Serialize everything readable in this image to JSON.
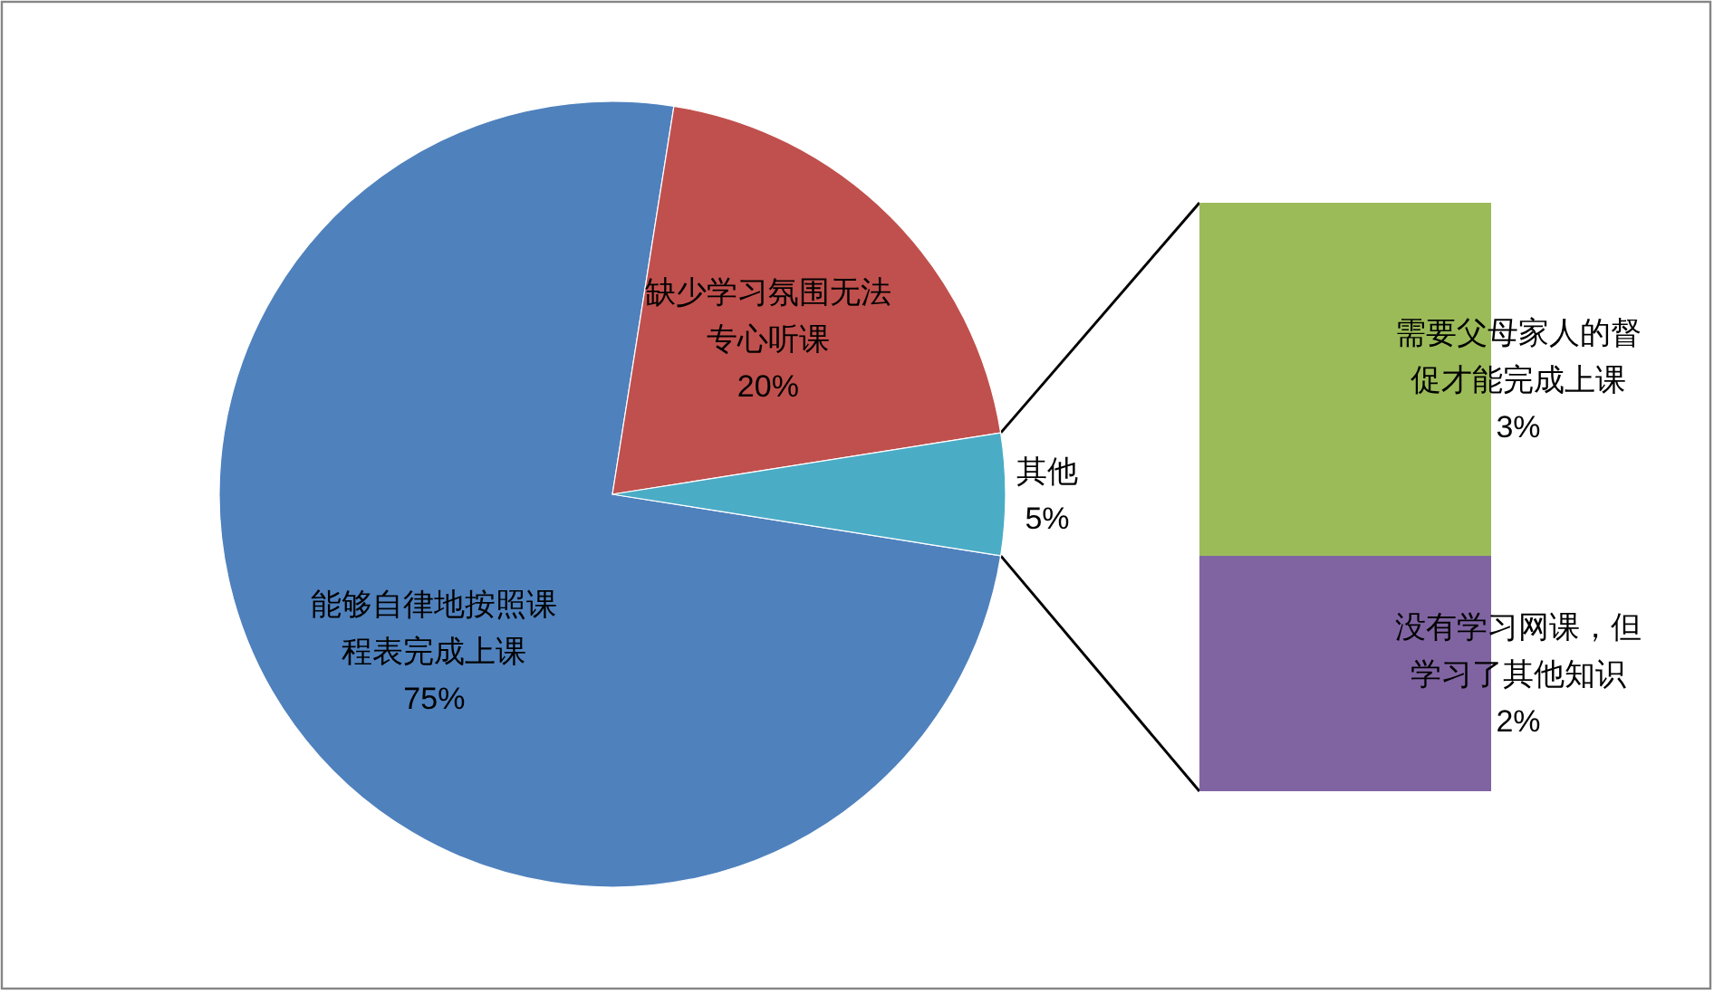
{
  "chart_data": [
    {
      "type": "pie",
      "categories": [
        "能够自律地按照课程表完成上课",
        "缺少学习氛围无法专心听课",
        "其他"
      ],
      "values": [
        75,
        20,
        5
      ],
      "colors": [
        "#4f81bd",
        "#c0504d",
        "#4bacc6"
      ],
      "value_labels": [
        "75%",
        "20%",
        "5%"
      ]
    },
    {
      "type": "bar",
      "stacked": true,
      "categories": [
        null
      ],
      "series": [
        {
          "name": "没有学习网课，但学习了其他知识",
          "color": "#8064a2",
          "values": [
            2
          ],
          "value_labels": [
            "2%"
          ]
        },
        {
          "name": "需要父母家人的督促才能完成上课",
          "color": "#9bbb59",
          "values": [
            3
          ],
          "value_labels": [
            "3%"
          ]
        }
      ]
    }
  ]
}
